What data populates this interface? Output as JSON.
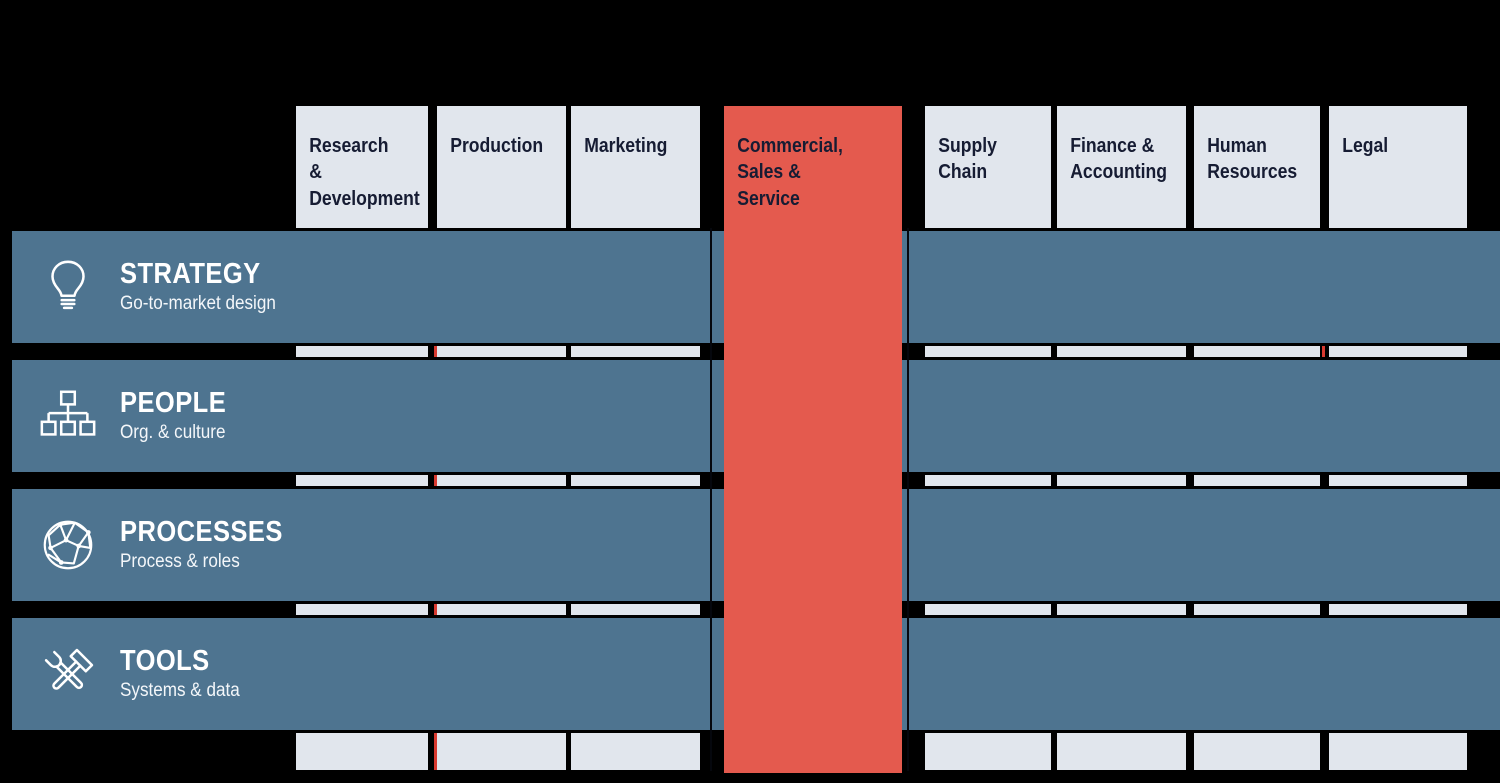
{
  "colors": {
    "background": "#000000",
    "row_bar": "#4e7490",
    "column": "#e1e6ed",
    "highlight_column": "#e45a4e",
    "header_text": "#161c33",
    "row_text": "#ffffff",
    "divider_line": "#05070d",
    "accent_sliver": "#d93a30"
  },
  "matrix": {
    "columns": [
      {
        "id": "research-development",
        "label": "Research &\nDevelopment",
        "highlighted": false
      },
      {
        "id": "production",
        "label": "Production",
        "highlighted": false
      },
      {
        "id": "marketing",
        "label": "Marketing",
        "highlighted": false
      },
      {
        "id": "commercial-sales-service",
        "label": "Commercial,\nSales &\nService",
        "highlighted": true
      },
      {
        "id": "supply-chain",
        "label": "Supply\nChain",
        "highlighted": false
      },
      {
        "id": "finance-accounting",
        "label": "Finance &\nAccounting",
        "highlighted": false
      },
      {
        "id": "human-resources",
        "label": "Human\nResources",
        "highlighted": false
      },
      {
        "id": "legal",
        "label": "Legal",
        "highlighted": false
      }
    ],
    "rows": [
      {
        "id": "strategy",
        "title": "STRATEGY",
        "subtitle": "Go-to-market design",
        "icon": "lightbulb-icon"
      },
      {
        "id": "people",
        "title": "PEOPLE",
        "subtitle": "Org. & culture",
        "icon": "org-chart-icon"
      },
      {
        "id": "processes",
        "title": "PROCESSES",
        "subtitle": "Process & roles",
        "icon": "network-globe-icon"
      },
      {
        "id": "tools",
        "title": "TOOLS",
        "subtitle": "Systems & data",
        "icon": "crossed-tools-icon"
      }
    ]
  }
}
